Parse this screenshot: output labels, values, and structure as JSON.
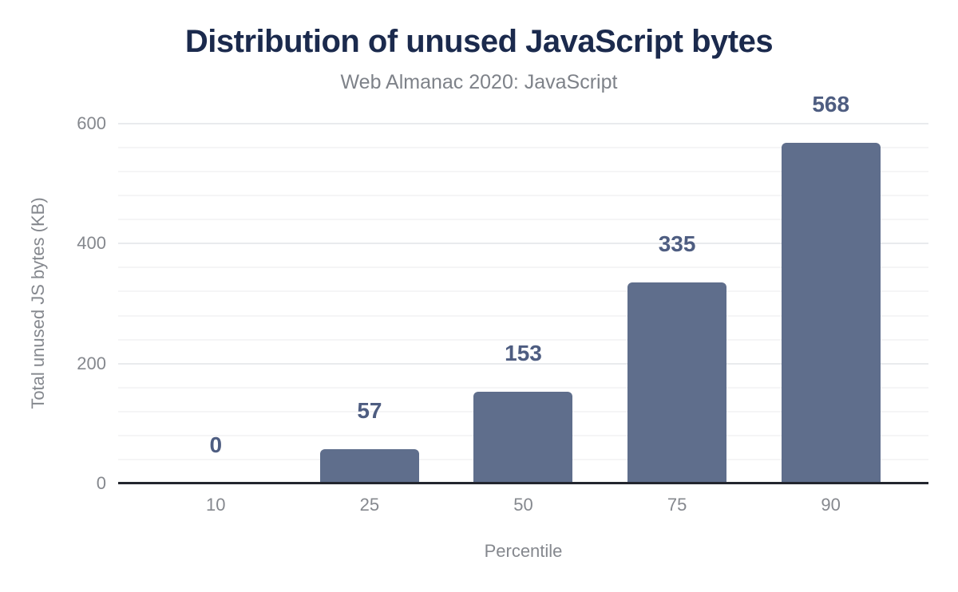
{
  "chart_data": {
    "type": "bar",
    "title": "Distribution of unused JavaScript bytes",
    "subtitle": "Web Almanac 2020: JavaScript",
    "xlabel": "Percentile",
    "ylabel": "Total unused JS bytes (KB)",
    "categories": [
      "10",
      "25",
      "50",
      "75",
      "90"
    ],
    "values": [
      0,
      57,
      153,
      335,
      568
    ],
    "data_labels": [
      "0",
      "57",
      "153",
      "335",
      "568"
    ],
    "ylim": [
      0,
      600
    ],
    "yticks": [
      0,
      200,
      400,
      600
    ],
    "minor_grid_step": 40,
    "grid": true,
    "legend": "none"
  },
  "colors": {
    "background": "#ffffff",
    "bar": "#5f6e8c",
    "title": "#1b2a4d",
    "subtitle": "#7e8289",
    "data_label": "#4e5d81",
    "tick_label": "#85888e",
    "axis_line": "#23262e",
    "major_grid": "#e9ebed",
    "minor_grid": "#f5f5f6"
  }
}
